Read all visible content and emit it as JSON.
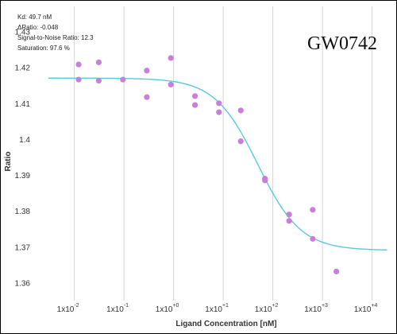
{
  "chart_data": {
    "type": "scatter",
    "title": "GW0742",
    "xlabel": "Ligand Concentration [nM]",
    "ylabel": "Ratio",
    "x_scale": "log10",
    "x_ticks": [
      {
        "base": "1x10",
        "exp": "-2",
        "value": 0.01
      },
      {
        "base": "1x10",
        "exp": "-1",
        "value": 0.1
      },
      {
        "base": "1x10",
        "exp": "+0",
        "value": 1
      },
      {
        "base": "1x10",
        "exp": "+1",
        "value": 10
      },
      {
        "base": "1x10",
        "exp": "+2",
        "value": 100
      },
      {
        "base": "1x10",
        "exp": "+3",
        "value": 1000
      },
      {
        "base": "1x10",
        "exp": "+4",
        "value": 10000
      }
    ],
    "xlim": [
      0.0025,
      22000
    ],
    "y_ticks": [
      "1.36",
      "1.37",
      "1.38",
      "1.39",
      "1.4",
      "1.41",
      "1.42",
      "1.43"
    ],
    "ylim": [
      1.355,
      1.437
    ],
    "grid": "vertical",
    "annotations": [
      "Kd: 49.7 nM",
      "ΔRatio: -0.048",
      "Signal-to-Noise Ratio: 12.3",
      "Saturation: 97.6 %"
    ],
    "fit": {
      "top": 1.417,
      "bottom": 1.369,
      "kd": 49.7,
      "hill": 1,
      "color": "#5bc8dc"
    },
    "point_color": "#c77fd9",
    "points": [
      {
        "x": 0.0122,
        "y": 1.4208
      },
      {
        "x": 0.0122,
        "y": 1.4166
      },
      {
        "x": 0.0311,
        "y": 1.4214
      },
      {
        "x": 0.0311,
        "y": 1.4163
      },
      {
        "x": 0.0951,
        "y": 1.4166
      },
      {
        "x": 0.289,
        "y": 1.4191
      },
      {
        "x": 0.289,
        "y": 1.4117
      },
      {
        "x": 0.881,
        "y": 1.4226
      },
      {
        "x": 0.881,
        "y": 1.4152
      },
      {
        "x": 2.7,
        "y": 1.412
      },
      {
        "x": 2.7,
        "y": 1.4095
      },
      {
        "x": 8.21,
        "y": 1.41
      },
      {
        "x": 8.21,
        "y": 1.4075
      },
      {
        "x": 22.6,
        "y": 1.408
      },
      {
        "x": 22.6,
        "y": 1.3994
      },
      {
        "x": 69.4,
        "y": 1.389
      },
      {
        "x": 69.4,
        "y": 1.3885
      },
      {
        "x": 213,
        "y": 1.379
      },
      {
        "x": 213,
        "y": 1.3772
      },
      {
        "x": 637,
        "y": 1.3803
      },
      {
        "x": 637,
        "y": 1.3722
      },
      {
        "x": 1910,
        "y": 1.3631
      }
    ]
  }
}
